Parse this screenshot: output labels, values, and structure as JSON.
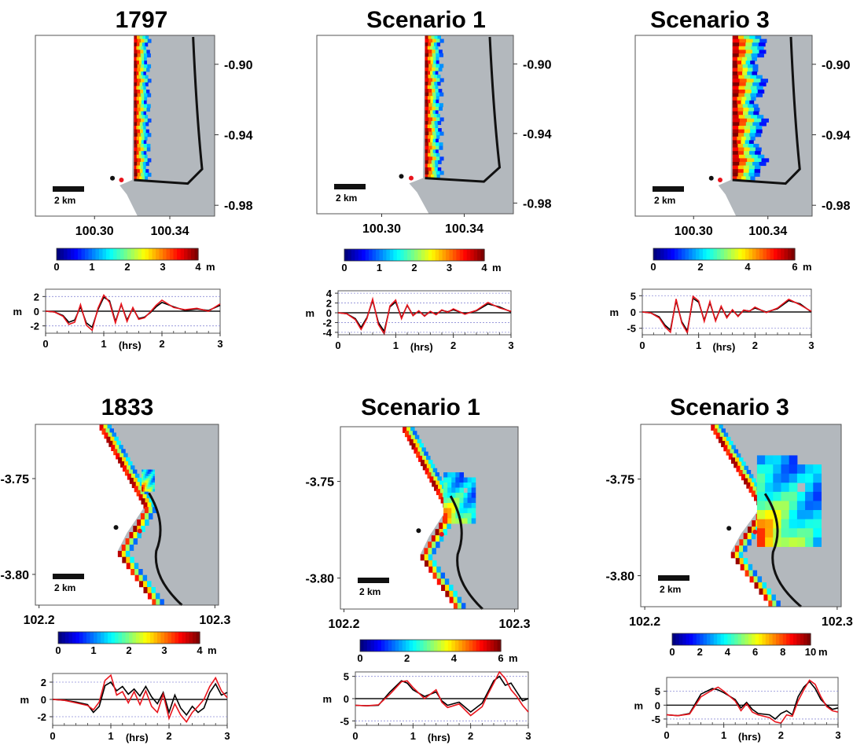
{
  "chart_data": [
    {
      "type": "heatmap",
      "title": "1797",
      "panel": "map",
      "xticks": [
        "100.30",
        "100.34"
      ],
      "yticks": [
        "-0.90",
        "-0.94",
        "-0.98"
      ],
      "yaxis_side": "right",
      "scale_bar": "2 km",
      "colorbar": {
        "ticks": [
          "0",
          "1",
          "2",
          "3",
          "4"
        ],
        "unit": "m",
        "min": 0,
        "max": 4
      },
      "inundation": "narrow",
      "coast": "straight",
      "timeseries": {
        "ylabel": "m",
        "xlabel": "(hrs)",
        "xticks": [
          "0",
          "1",
          "2",
          "3"
        ],
        "yticks": [
          "2",
          "0",
          "-2"
        ],
        "ylim": [
          -3,
          3
        ],
        "x": [
          0,
          0.15,
          0.3,
          0.4,
          0.5,
          0.6,
          0.7,
          0.8,
          0.9,
          1.0,
          1.1,
          1.2,
          1.3,
          1.4,
          1.5,
          1.6,
          1.7,
          1.8,
          1.9,
          2.0,
          2.2,
          2.4,
          2.6,
          2.8,
          3.0
        ],
        "series": [
          {
            "color": "#000000",
            "values": [
              0,
              -0.1,
              -0.6,
              -1.5,
              -1.2,
              0.6,
              -1.6,
              -2.2,
              0.2,
              1.9,
              1.4,
              -1.4,
              0.9,
              -1.2,
              0.4,
              -1.0,
              -0.8,
              -0.2,
              0.6,
              1.2,
              0.6,
              0.1,
              0.3,
              0.1,
              0.8
            ]
          },
          {
            "color": "#e8141c",
            "values": [
              0,
              -0.1,
              -0.7,
              -1.8,
              -1.5,
              0.9,
              -1.9,
              -2.6,
              0.4,
              2.2,
              1.2,
              -1.6,
              1.0,
              -1.4,
              0.5,
              -1.1,
              -0.9,
              -0.1,
              0.8,
              1.5,
              0.5,
              0.2,
              0.4,
              0.0,
              1.0
            ]
          }
        ]
      }
    },
    {
      "type": "heatmap",
      "title": "Scenario 1",
      "panel": "map",
      "xticks": [
        "100.30",
        "100.34"
      ],
      "yticks": [
        "-0.90",
        "-0.94",
        "-0.98"
      ],
      "yaxis_side": "right",
      "scale_bar": "2 km",
      "colorbar": {
        "ticks": [
          "0",
          "1",
          "2",
          "3",
          "4"
        ],
        "unit": "m",
        "min": 0,
        "max": 4
      },
      "inundation": "narrow",
      "coast": "straight",
      "timeseries": {
        "ylabel": "m",
        "xlabel": "(hrs)",
        "xticks": [
          "0",
          "1",
          "2",
          "3"
        ],
        "yticks": [
          "4",
          "2",
          "0",
          "-2",
          "-4"
        ],
        "ylim": [
          -4.5,
          4.5
        ],
        "x": [
          0,
          0.15,
          0.3,
          0.4,
          0.5,
          0.6,
          0.7,
          0.8,
          0.9,
          1.0,
          1.1,
          1.2,
          1.3,
          1.4,
          1.5,
          1.6,
          1.7,
          1.8,
          1.9,
          2.0,
          2.2,
          2.4,
          2.6,
          2.8,
          3.0
        ],
        "series": [
          {
            "color": "#000000",
            "values": [
              0,
              -0.2,
              -1.2,
              -3.0,
              -1.0,
              2.5,
              -2.0,
              -3.8,
              1.2,
              2.2,
              -1.0,
              1.5,
              -0.5,
              0.3,
              -0.6,
              0.2,
              -0.3,
              0.5,
              0.2,
              0.6,
              -0.2,
              0.4,
              1.8,
              1.2,
              0.2
            ]
          },
          {
            "color": "#e8141c",
            "values": [
              0,
              -0.2,
              -1.4,
              -3.4,
              -1.2,
              2.8,
              -2.4,
              -4.3,
              1.4,
              2.6,
              -1.2,
              1.6,
              -0.6,
              0.4,
              -0.7,
              0.3,
              -0.4,
              0.6,
              0.1,
              0.8,
              -0.3,
              0.5,
              2.1,
              1.0,
              0.3
            ]
          }
        ]
      }
    },
    {
      "type": "heatmap",
      "title": "Scenario 3",
      "panel": "map",
      "xticks": [
        "100.30",
        "100.34"
      ],
      "yticks": [
        "-0.90",
        "-0.94",
        "-0.98"
      ],
      "yaxis_side": "right",
      "scale_bar": "2 km",
      "colorbar": {
        "ticks": [
          "0",
          "2",
          "4",
          "6"
        ],
        "unit": "m",
        "min": 0,
        "max": 6
      },
      "inundation": "wide",
      "coast": "straight",
      "timeseries": {
        "ylabel": "m",
        "xlabel": "(hrs)",
        "xticks": [
          "0",
          "1",
          "2",
          "3"
        ],
        "yticks": [
          "5",
          "0",
          "-5"
        ],
        "ylim": [
          -7,
          7
        ],
        "x": [
          0,
          0.15,
          0.3,
          0.4,
          0.5,
          0.6,
          0.7,
          0.8,
          0.9,
          1.0,
          1.1,
          1.2,
          1.3,
          1.4,
          1.5,
          1.6,
          1.7,
          1.8,
          1.9,
          2.0,
          2.2,
          2.4,
          2.6,
          2.8,
          3.0
        ],
        "series": [
          {
            "color": "#000000",
            "values": [
              0,
              -0.3,
              -1.5,
              -4.0,
              -5.5,
              3.5,
              -3.0,
              -5.8,
              4.2,
              3.0,
              -2.5,
              2.8,
              -2.5,
              1.5,
              -1.5,
              0.5,
              -1.2,
              0.5,
              0.3,
              1.2,
              0.0,
              1.0,
              3.5,
              2.5,
              0.0
            ]
          },
          {
            "color": "#e8141c",
            "values": [
              0,
              -0.3,
              -1.8,
              -4.5,
              -6.2,
              4.0,
              -3.4,
              -6.4,
              4.8,
              3.4,
              -2.9,
              3.2,
              -2.8,
              1.8,
              -1.8,
              0.7,
              -1.4,
              0.6,
              0.2,
              1.5,
              -0.2,
              1.2,
              3.9,
              2.2,
              0.2
            ]
          }
        ]
      }
    },
    {
      "type": "heatmap",
      "title": "1833",
      "panel": "map",
      "xticks": [
        "102.2",
        "102.3"
      ],
      "yticks": [
        "-3.75",
        "-3.80"
      ],
      "yaxis_side": "left",
      "scale_bar": "2 km",
      "colorbar": {
        "ticks": [
          "0",
          "1",
          "2",
          "3",
          "4"
        ],
        "unit": "m",
        "min": 0,
        "max": 4
      },
      "inundation": "small",
      "coast": "diagonal",
      "timeseries": {
        "ylabel": "m",
        "xlabel": "(hrs)",
        "xticks": [
          "0",
          "1",
          "2",
          "3"
        ],
        "yticks": [
          "2",
          "0",
          "-2"
        ],
        "ylim": [
          -3,
          3
        ],
        "x": [
          0,
          0.2,
          0.4,
          0.6,
          0.7,
          0.8,
          0.9,
          1.0,
          1.1,
          1.2,
          1.3,
          1.4,
          1.5,
          1.6,
          1.7,
          1.8,
          1.9,
          2.0,
          2.1,
          2.2,
          2.3,
          2.4,
          2.5,
          2.6,
          2.7,
          2.8,
          2.9,
          3.0
        ],
        "series": [
          {
            "color": "#000000",
            "values": [
              0,
              -0.1,
              -0.3,
              -0.6,
              -1.5,
              -0.8,
              1.6,
              2.0,
              1.0,
              1.5,
              0.6,
              1.2,
              0.4,
              1.5,
              0.3,
              -0.5,
              0.8,
              -1.5,
              0.5,
              -1.0,
              -1.8,
              -0.8,
              -1.5,
              -1.0,
              0.8,
              1.8,
              0.5,
              0.8
            ]
          },
          {
            "color": "#e8141c",
            "values": [
              0,
              -0.1,
              -0.4,
              -0.7,
              -1.2,
              -0.3,
              2.2,
              2.8,
              0.5,
              0.9,
              -0.4,
              0.9,
              -0.6,
              1.0,
              -0.8,
              -1.5,
              0.6,
              -2.2,
              -0.5,
              -1.8,
              -2.6,
              -1.5,
              -0.8,
              0.0,
              1.5,
              2.5,
              1.0,
              0.2
            ]
          }
        ]
      }
    },
    {
      "type": "heatmap",
      "title": "Scenario 1",
      "panel": "map",
      "xticks": [
        "102.2",
        "102.3"
      ],
      "yticks": [
        "-3.75",
        "-3.80"
      ],
      "yaxis_side": "left",
      "scale_bar": "2 km",
      "colorbar": {
        "ticks": [
          "0",
          "2",
          "4",
          "6"
        ],
        "unit": "m",
        "min": 0,
        "max": 6
      },
      "inundation": "medium",
      "coast": "diagonal",
      "timeseries": {
        "ylabel": "m",
        "xlabel": "(hrs)",
        "xticks": [
          "0",
          "1",
          "2",
          "3"
        ],
        "yticks": [
          "5",
          "0",
          "-5"
        ],
        "ylim": [
          -6,
          6
        ],
        "x": [
          0,
          0.2,
          0.4,
          0.6,
          0.8,
          0.9,
          1.0,
          1.2,
          1.4,
          1.5,
          1.6,
          1.8,
          2.0,
          2.2,
          2.3,
          2.4,
          2.5,
          2.6,
          2.7,
          2.8,
          2.9,
          3.0
        ],
        "series": [
          {
            "color": "#000000",
            "values": [
              -1.5,
              -1.6,
              -1.5,
              1.5,
              4.0,
              3.5,
              2.0,
              0.5,
              1.5,
              -0.5,
              -1.5,
              -0.8,
              -3.0,
              -1.0,
              1.5,
              4.0,
              5.0,
              3.0,
              3.5,
              1.5,
              -0.5,
              0.0
            ]
          },
          {
            "color": "#e8141c",
            "values": [
              -1.5,
              -1.6,
              -1.4,
              1.0,
              3.8,
              4.0,
              2.5,
              0.0,
              2.0,
              -0.8,
              -2.0,
              -1.2,
              -3.8,
              -1.8,
              1.0,
              3.5,
              6.0,
              4.5,
              2.0,
              0.5,
              -1.5,
              -3.0
            ]
          }
        ]
      }
    },
    {
      "type": "heatmap",
      "title": "Scenario 3",
      "panel": "map",
      "xticks": [
        "102.2",
        "102.3"
      ],
      "yticks": [
        "-3.75",
        "-3.80"
      ],
      "yaxis_side": "left",
      "scale_bar": "2 km",
      "colorbar": {
        "ticks": [
          "0",
          "2",
          "4",
          "6",
          "8",
          "10"
        ],
        "unit": "m",
        "min": 0,
        "max": 10
      },
      "inundation": "large",
      "coast": "diagonal",
      "timeseries": {
        "ylabel": "m",
        "xlabel": "(hrs)",
        "xticks": [
          "0",
          "1",
          "2",
          "3"
        ],
        "yticks": [
          "5",
          "0",
          "-5"
        ],
        "ylim": [
          -7,
          10
        ],
        "x": [
          0,
          0.2,
          0.4,
          0.6,
          0.8,
          0.9,
          1.0,
          1.2,
          1.3,
          1.4,
          1.5,
          1.6,
          1.8,
          1.9,
          2.0,
          2.1,
          2.2,
          2.3,
          2.4,
          2.5,
          2.6,
          2.7,
          2.8,
          2.9,
          3.0
        ],
        "series": [
          {
            "color": "#000000",
            "values": [
              -3.5,
              -3.8,
              -3.0,
              4.0,
              6.0,
              5.5,
              4.5,
              2.0,
              -1.0,
              1.0,
              -1.5,
              -3.0,
              -3.5,
              -5.0,
              -3.0,
              -2.0,
              -3.5,
              3.0,
              6.5,
              8.5,
              6.0,
              2.0,
              0.0,
              -1.5,
              -1.0
            ]
          },
          {
            "color": "#e8141c",
            "values": [
              -3.5,
              -3.8,
              -3.2,
              3.0,
              5.5,
              6.5,
              5.0,
              1.5,
              -2.0,
              0.5,
              -2.5,
              -3.5,
              -4.5,
              -6.0,
              -6.5,
              -3.5,
              -4.0,
              1.5,
              5.5,
              9.0,
              7.5,
              3.0,
              -0.5,
              -2.0,
              -2.5
            ]
          }
        ]
      }
    }
  ]
}
